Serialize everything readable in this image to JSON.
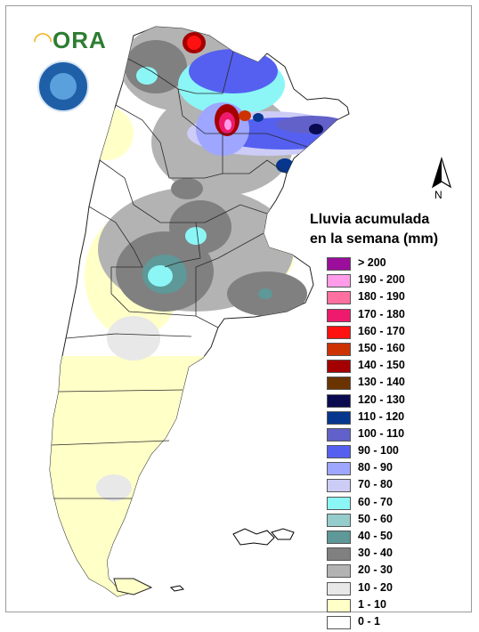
{
  "header": {
    "logo_text": "ORA",
    "seal_name": "servicio-meteorologico-nacional-seal"
  },
  "compass": {
    "label": "N"
  },
  "legend": {
    "title_line1": "Lluvia acumulada",
    "title_line2": "en la semana (mm)",
    "items": [
      {
        "label": "> 200",
        "color": "#9b0e9b"
      },
      {
        "label": "190 - 200",
        "color": "#ff9be8"
      },
      {
        "label": "180 - 190",
        "color": "#ff6fa0"
      },
      {
        "label": "170 - 180",
        "color": "#ee1a6d"
      },
      {
        "label": "160 - 170",
        "color": "#ff1111"
      },
      {
        "label": "150 - 160",
        "color": "#cc3300"
      },
      {
        "label": "140 - 150",
        "color": "#a50000"
      },
      {
        "label": "130 - 140",
        "color": "#6b3300"
      },
      {
        "label": "120 - 130",
        "color": "#0a0a50"
      },
      {
        "label": "110 - 120",
        "color": "#06368e"
      },
      {
        "label": "100 - 110",
        "color": "#6161c9"
      },
      {
        "label": "90 - 100",
        "color": "#5560f0"
      },
      {
        "label": "80 - 90",
        "color": "#9ea6ff"
      },
      {
        "label": "70 - 80",
        "color": "#ccccf6"
      },
      {
        "label": "60 - 70",
        "color": "#8cf6f6"
      },
      {
        "label": "50 - 60",
        "color": "#95cccc"
      },
      {
        "label": "40 - 50",
        "color": "#5e9898"
      },
      {
        "label": "30 - 40",
        "color": "#808080"
      },
      {
        "label": "20 - 30",
        "color": "#b3b3b3"
      },
      {
        "label": "10 - 20",
        "color": "#e8e8e8"
      },
      {
        "label": "1 - 10",
        "color": "#ffffc8"
      },
      {
        "label": "0 - 1",
        "color": "#ffffff"
      }
    ]
  }
}
